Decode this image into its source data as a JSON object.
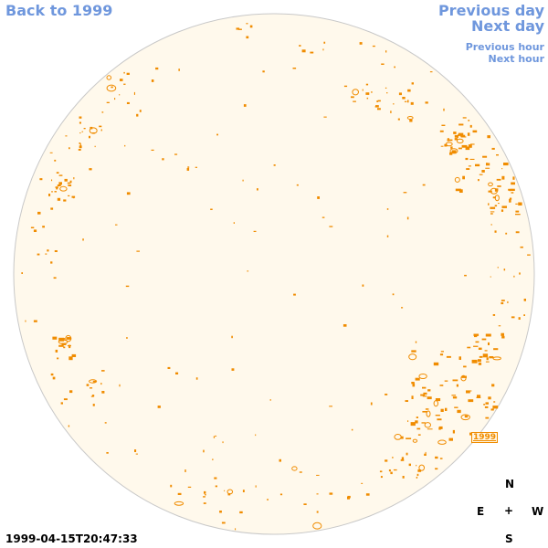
{
  "navigation": {
    "back_label": "Back to 1999",
    "previous_day_label": "Previous day",
    "next_day_label": "Next day",
    "previous_hour_label": "Previous hour",
    "next_hour_label": "Next hour"
  },
  "region_label": "1999",
  "compass": {
    "north": "N",
    "east": "E",
    "center": "+",
    "west": "W",
    "south": "S"
  },
  "timestamp": "1999-04-15T20:47:33",
  "colors": {
    "link": "#6f97dd",
    "disk_fill": "#fff9ec",
    "disk_stroke": "#c8c8c8",
    "feature": "#f08c00"
  }
}
